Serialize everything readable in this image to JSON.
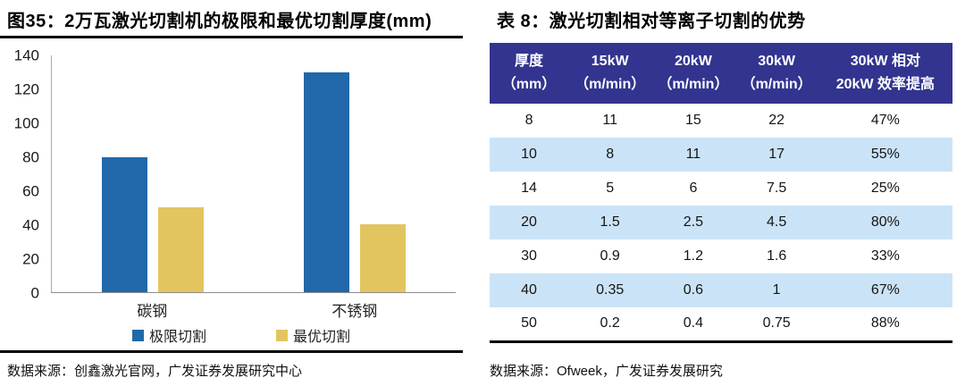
{
  "left_panel": {
    "title": "图35：2万瓦激光切割机的极限和最优切割厚度(mm)",
    "source": "数据来源：创鑫激光官网，广发证券发展研究中心"
  },
  "right_panel": {
    "title": "表 8：激光切割相对等离子切割的优势",
    "source": "数据来源：Ofweek，广发证券发展研究"
  },
  "chart_data": [
    {
      "type": "bar",
      "title": "2万瓦激光切割机的极限和最优切割厚度(mm)",
      "categories": [
        "碳钢",
        "不锈钢"
      ],
      "series": [
        {
          "name": "极限切割",
          "color": "#2068AA",
          "values": [
            80,
            130
          ]
        },
        {
          "name": "最优切割",
          "color": "#E3C55F",
          "values": [
            50,
            40
          ]
        }
      ],
      "ylim": [
        0,
        140
      ],
      "yticks": [
        0,
        20,
        40,
        60,
        80,
        100,
        120,
        140
      ],
      "grid": false,
      "legend_position": "bottom"
    },
    {
      "type": "table",
      "title": "激光切割相对等离子切割的优势",
      "header_bg": "#32348F",
      "stripe_bg": "#CBE3F6",
      "columns": [
        {
          "line1": "厚度",
          "line2": "（mm）"
        },
        {
          "line1": "15kW",
          "line2": "（m/min）"
        },
        {
          "line1": "20kW",
          "line2": "（m/min）"
        },
        {
          "line1": "30kW",
          "line2": "（m/min）"
        },
        {
          "line1": "30kW 相对",
          "line2": "20kW 效率提高"
        }
      ],
      "rows": [
        [
          "8",
          "11",
          "15",
          "22",
          "47%"
        ],
        [
          "10",
          "8",
          "11",
          "17",
          "55%"
        ],
        [
          "14",
          "5",
          "6",
          "7.5",
          "25%"
        ],
        [
          "20",
          "1.5",
          "2.5",
          "4.5",
          "80%"
        ],
        [
          "30",
          "0.9",
          "1.2",
          "1.6",
          "33%"
        ],
        [
          "40",
          "0.35",
          "0.6",
          "1",
          "67%"
        ],
        [
          "50",
          "0.2",
          "0.4",
          "0.75",
          "88%"
        ]
      ]
    }
  ]
}
